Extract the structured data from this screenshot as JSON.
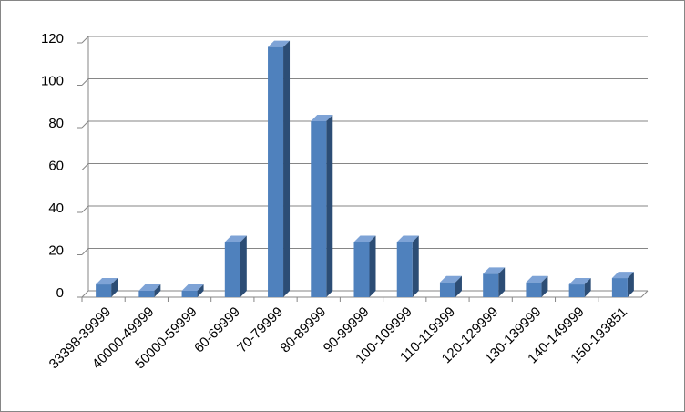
{
  "chart_data": {
    "type": "bar3d",
    "categories": [
      "33398-39999",
      "40000-49999",
      "50000-59999",
      "60-69999",
      "70-79999",
      "80-89999",
      "90-99999",
      "100-109999",
      "110-119999",
      "120-129999",
      "130-139999",
      "140-149999",
      "150-193851"
    ],
    "values": [
      6,
      3,
      3,
      26,
      118,
      83,
      26,
      26,
      7,
      11,
      7,
      6,
      9
    ],
    "color": "#4f81bd",
    "ylim": [
      0,
      120
    ],
    "yticks": [
      0,
      20,
      40,
      60,
      80,
      100,
      120
    ],
    "grid": true
  }
}
